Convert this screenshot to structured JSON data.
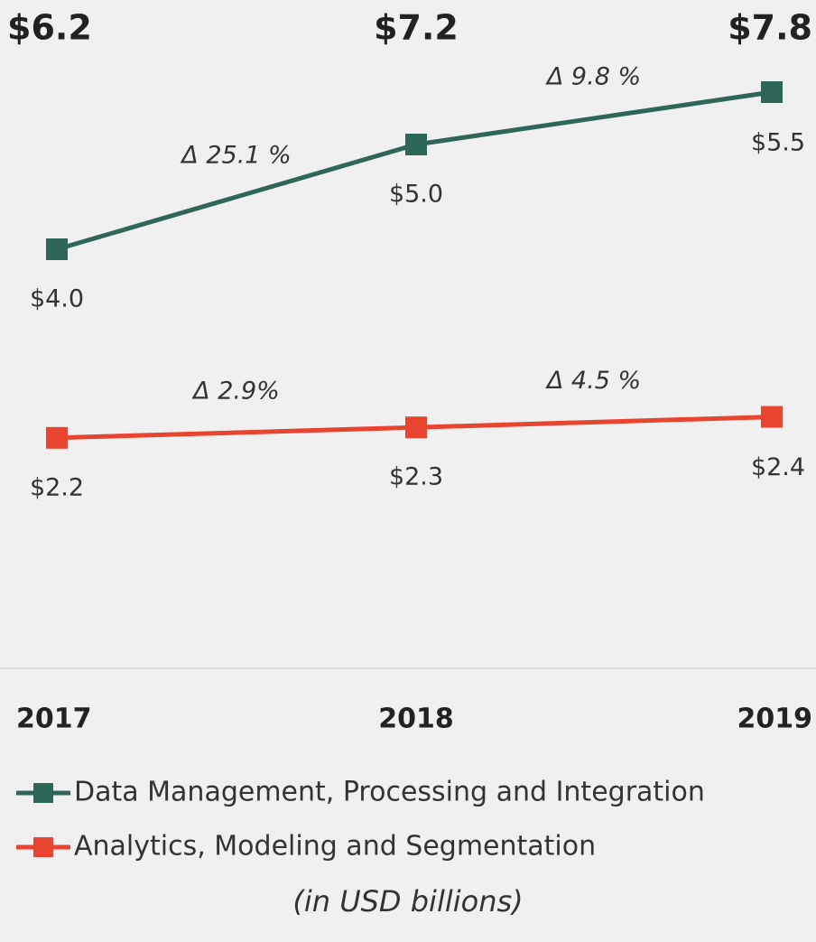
{
  "chart_data": {
    "type": "line",
    "categories": [
      "2017",
      "2018",
      "2019"
    ],
    "ylim": [
      0,
      6
    ],
    "series": [
      {
        "name": "Data Management, Processing and Integration",
        "color": "#2e6659",
        "values": [
          4.0,
          5.0,
          5.5
        ],
        "value_labels": [
          "$4.0",
          "$5.0",
          "$5.5"
        ],
        "change_labels": [
          "Δ 25.1 %",
          "Δ 9.8 %"
        ]
      },
      {
        "name": "Analytics, Modeling and Segmentation",
        "color": "#e84530",
        "values": [
          2.2,
          2.3,
          2.4
        ],
        "value_labels": [
          "$2.2",
          "$2.3",
          "$2.4"
        ],
        "change_labels": [
          "Δ 2.9%",
          "Δ 4.5 %"
        ]
      }
    ],
    "totals": {
      "values": [
        6.2,
        7.2,
        7.8
      ],
      "value_labels": [
        "$6.2",
        "$7.2",
        "$7.8"
      ]
    },
    "note": "(in USD billions)"
  }
}
